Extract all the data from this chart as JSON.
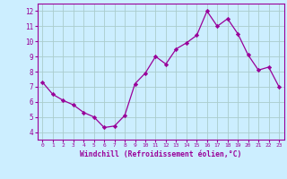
{
  "x": [
    0,
    1,
    2,
    3,
    4,
    5,
    6,
    7,
    8,
    9,
    10,
    11,
    12,
    13,
    14,
    15,
    16,
    17,
    18,
    19,
    20,
    21,
    22,
    23
  ],
  "y": [
    7.3,
    6.5,
    6.1,
    5.8,
    5.3,
    5.0,
    4.3,
    4.4,
    5.1,
    7.2,
    7.9,
    9.0,
    8.5,
    9.5,
    9.9,
    10.4,
    12.0,
    11.0,
    11.5,
    10.5,
    9.1,
    8.1,
    8.3,
    7.0
  ],
  "line_color": "#990099",
  "marker": "D",
  "marker_size": 2.2,
  "background_color": "#cceeff",
  "grid_color": "#aacccc",
  "xlabel": "Windchill (Refroidissement éolien,°C)",
  "xlabel_color": "#990099",
  "tick_color": "#990099",
  "ylim": [
    3.5,
    12.5
  ],
  "xlim": [
    -0.5,
    23.5
  ],
  "yticks": [
    4,
    5,
    6,
    7,
    8,
    9,
    10,
    11,
    12
  ],
  "xticks": [
    0,
    1,
    2,
    3,
    4,
    5,
    6,
    7,
    8,
    9,
    10,
    11,
    12,
    13,
    14,
    15,
    16,
    17,
    18,
    19,
    20,
    21,
    22,
    23
  ]
}
